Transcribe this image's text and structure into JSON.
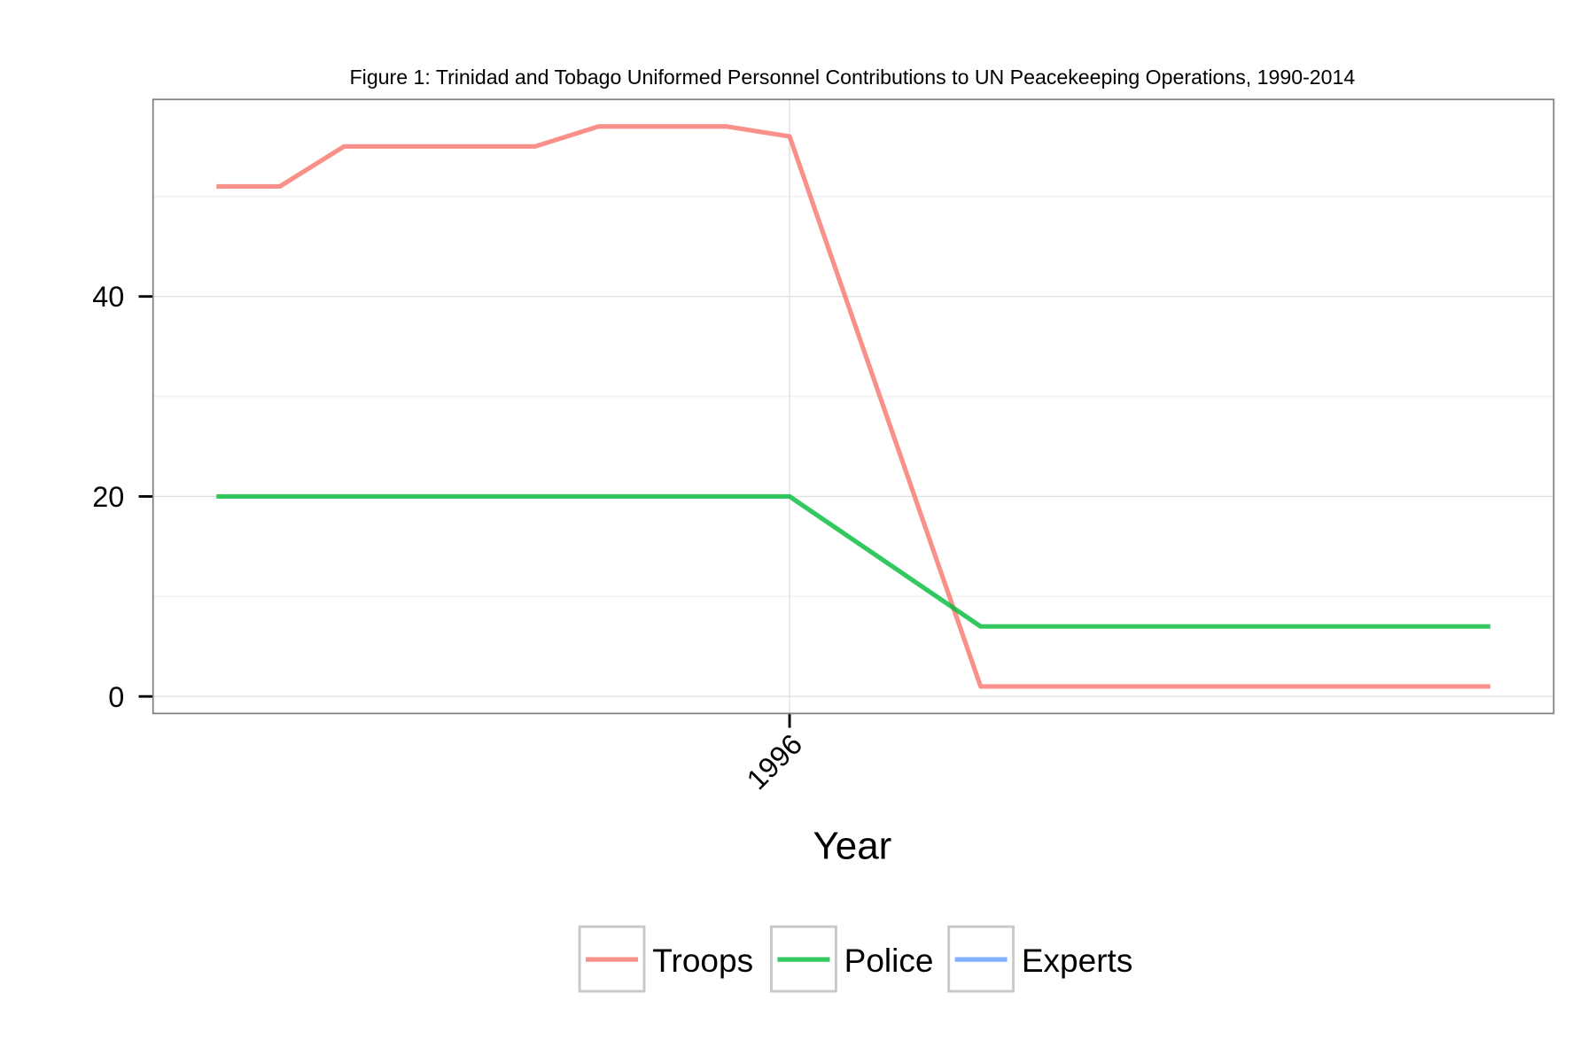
{
  "chart_data": {
    "type": "line",
    "title": "Figure 1: Trinidad and Tobago Uniformed Personnel Contributions to UN Peacekeeping Operations, 1990-2014",
    "x_label": "Year",
    "x": [
      1995.25,
      1995.333,
      1995.417,
      1995.667,
      1995.75,
      1995.917,
      1996,
      1996.25,
      1996.917
    ],
    "xlim": [
      1995.167,
      1997.0
    ],
    "xticks": [
      1996
    ],
    "ylim": [
      -1.7,
      59.7
    ],
    "yticks": [
      0,
      20,
      40
    ],
    "grid": true,
    "legend": "bottom",
    "series": [
      {
        "name": "Troops",
        "color": "#F8766D",
        "values": [
          51,
          51,
          55,
          55,
          57,
          57,
          56,
          1,
          1
        ]
      },
      {
        "name": "Police",
        "color": "#00BA38",
        "values": [
          20,
          20,
          20,
          20,
          20,
          20,
          20,
          7,
          7
        ]
      },
      {
        "name": "Experts",
        "color": "#619CFF",
        "values": [
          null,
          null,
          null,
          null,
          null,
          null,
          null,
          null,
          null
        ]
      }
    ]
  }
}
